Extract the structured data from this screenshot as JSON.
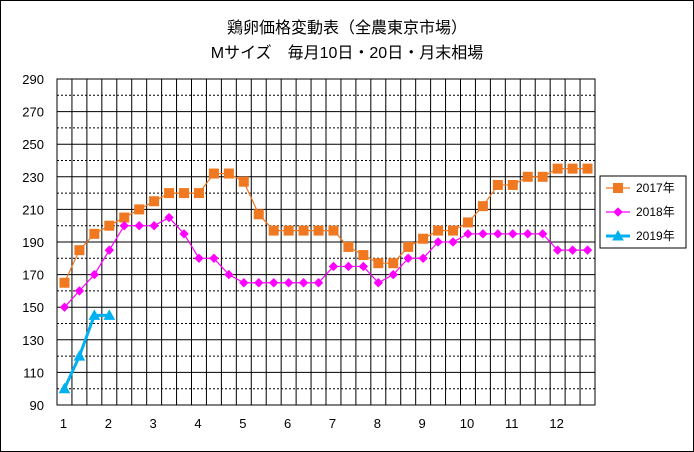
{
  "chart_data": {
    "type": "line",
    "title": "鶏卵価格変動表（全農東京市場）",
    "subtitle": "Mサイズ　毎月10日・20日・月末相場",
    "xlabel": "",
    "ylabel": "",
    "ylim": [
      90,
      290
    ],
    "yticks": [
      90,
      110,
      130,
      150,
      170,
      190,
      210,
      230,
      250,
      270,
      290
    ],
    "xtick_labels": [
      "1",
      "2",
      "3",
      "4",
      "5",
      "6",
      "7",
      "8",
      "9",
      "10",
      "11",
      "12"
    ],
    "grid": true,
    "legend_position": "right",
    "series": [
      {
        "name": "2017年",
        "color": "#f07820",
        "marker": "square",
        "values": [
          165,
          185,
          195,
          200,
          205,
          210,
          215,
          220,
          220,
          220,
          232,
          232,
          227,
          207,
          197,
          197,
          197,
          197,
          197,
          187,
          182,
          177,
          177,
          187,
          192,
          197,
          197,
          202,
          212,
          225,
          225,
          230,
          230,
          235,
          235,
          235
        ]
      },
      {
        "name": "2018年",
        "color": "#ff00ff",
        "marker": "diamond",
        "values": [
          150,
          160,
          170,
          185,
          200,
          200,
          200,
          205,
          195,
          180,
          180,
          170,
          165,
          165,
          165,
          165,
          165,
          165,
          175,
          175,
          175,
          165,
          170,
          180,
          180,
          190,
          190,
          195,
          195,
          195,
          195,
          195,
          195,
          185,
          185,
          185
        ]
      },
      {
        "name": "2019年",
        "color": "#00b0f0",
        "marker": "triangle",
        "values": [
          100,
          120,
          145,
          145
        ]
      }
    ]
  }
}
